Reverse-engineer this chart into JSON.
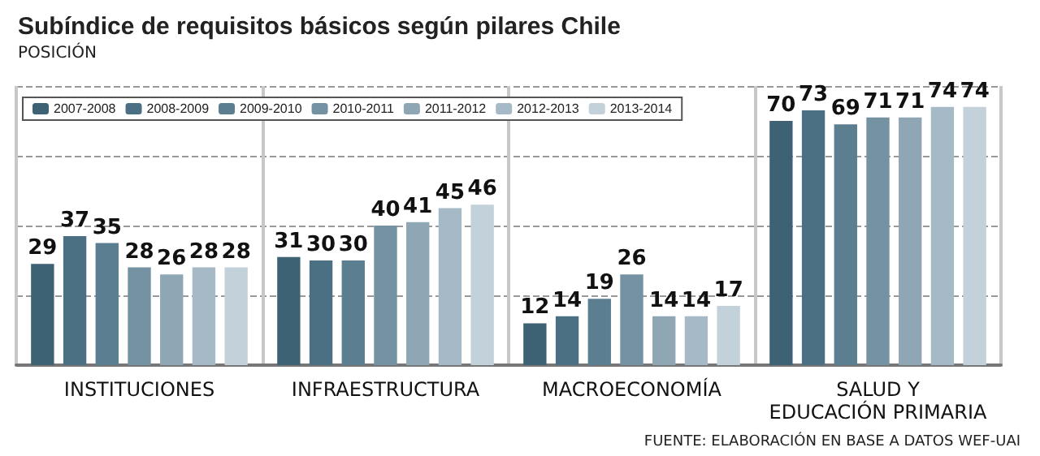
{
  "chart_data": {
    "type": "bar",
    "title": "Subíndice de requisitos básicos según pilares Chile",
    "subtitle": "POSICIÓN",
    "categories": [
      "INSTITUCIONES",
      "INFRAESTRUCTURA",
      "MACROECONOMÍA",
      "SALUD Y\nEDUCACIÓN PRIMARIA"
    ],
    "series": [
      {
        "name": "2007-2008",
        "color": "#3d6273",
        "values": [
          29,
          31,
          12,
          70
        ]
      },
      {
        "name": "2008-2009",
        "color": "#4c7083",
        "values": [
          37,
          30,
          14,
          73
        ]
      },
      {
        "name": "2009-2010",
        "color": "#5b7e90",
        "values": [
          35,
          30,
          19,
          69
        ]
      },
      {
        "name": "2010-2011",
        "color": "#7592a2",
        "values": [
          28,
          40,
          26,
          71
        ]
      },
      {
        "name": "2011-2012",
        "color": "#8fa7b5",
        "values": [
          26,
          41,
          14,
          71
        ]
      },
      {
        "name": "2012-2013",
        "color": "#a5b9c6",
        "values": [
          28,
          45,
          14,
          74
        ]
      },
      {
        "name": "2013-2014",
        "color": "#c3d1da",
        "values": [
          28,
          46,
          17,
          74
        ]
      }
    ],
    "ylim": [
      0,
      80
    ],
    "yticks": [
      {
        "value": 0,
        "label": null
      },
      {
        "value": 20,
        "label": null
      },
      {
        "value": 40,
        "label": null
      },
      {
        "value": 60,
        "label": null
      },
      {
        "value": 80,
        "label": null
      }
    ],
    "tick_labels": "x",
    "grid": true,
    "legend": "top left",
    "data_labels": true,
    "annotations": [
      "FUENTE: ELABORACIÓN EN BASE A DATOS WEF-UAI"
    ]
  }
}
